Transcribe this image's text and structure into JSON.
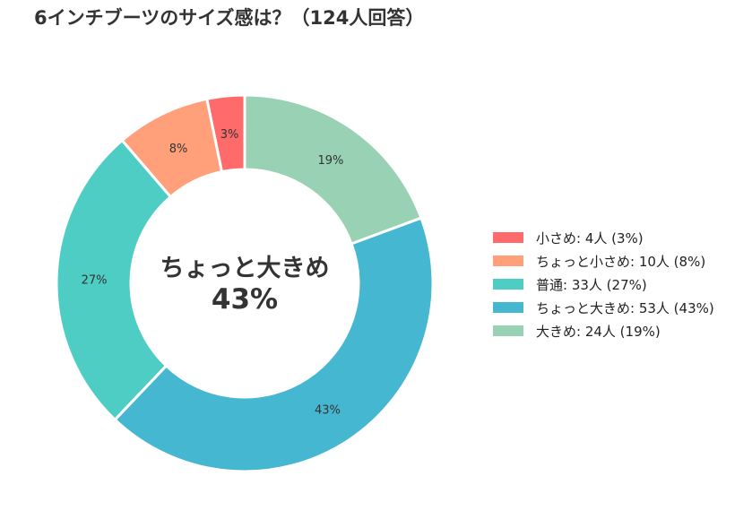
{
  "chart_data": {
    "type": "pie",
    "donut": true,
    "title": "6インチブーツのサイズ感は？（124人回答）",
    "center_label": "ちょっと大きめ",
    "center_value": "43%",
    "legend_position": "right",
    "slices": [
      {
        "label": "小さめ",
        "value": 4,
        "percent_label": "3%",
        "legend": "小さめ:  4人 (3%)",
        "color": "#FF6B6B"
      },
      {
        "label": "ちょっと小さめ",
        "value": 10,
        "percent_label": "8%",
        "legend": "ちょっと小さめ:  10人 (8%)",
        "color": "#FFA07A"
      },
      {
        "label": "普通",
        "value": 33,
        "percent_label": "27%",
        "legend": "普通:  33人 (27%)",
        "color": "#4ECDC4"
      },
      {
        "label": "ちょっと大きめ",
        "value": 53,
        "percent_label": "43%",
        "legend": "ちょっと大きめ:  53人 (43%)",
        "color": "#45B7D1"
      },
      {
        "label": "大きめ",
        "value": 24,
        "percent_label": "19%",
        "legend": "大きめ:  24人 (19%)",
        "color": "#98D1B4"
      }
    ]
  }
}
